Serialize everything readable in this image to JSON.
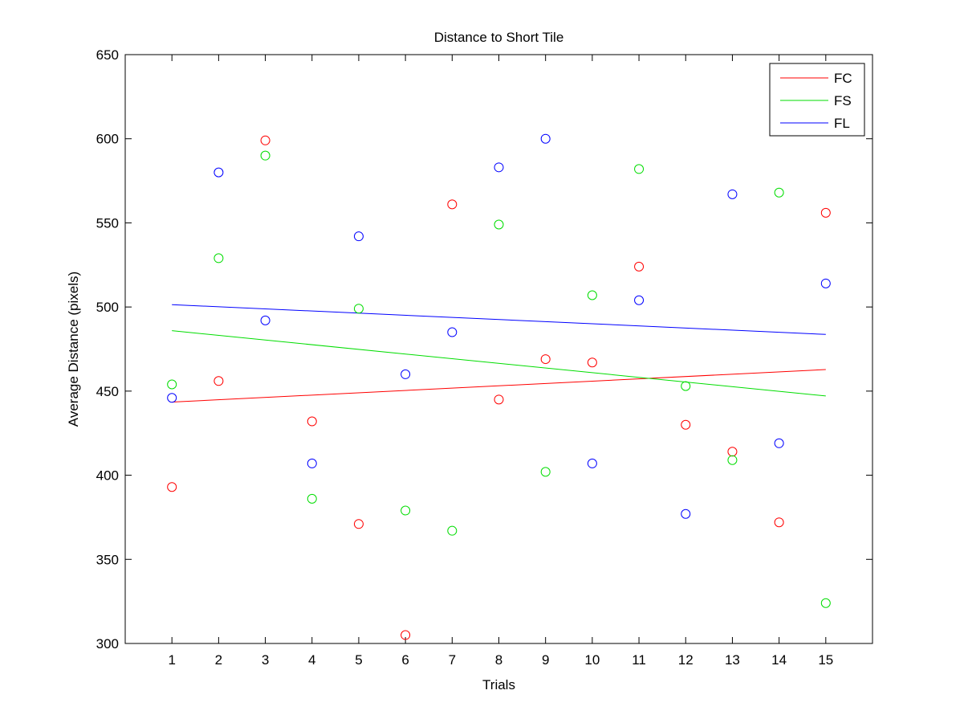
{
  "chart_data": {
    "type": "scatter",
    "title": "Distance to Short Tile",
    "xlabel": "Trials",
    "ylabel": "Average Distance (pixels)",
    "xlim": [
      0,
      16
    ],
    "ylim": [
      300,
      650
    ],
    "xticks": [
      1,
      2,
      3,
      4,
      5,
      6,
      7,
      8,
      9,
      10,
      11,
      12,
      13,
      14,
      15
    ],
    "yticks": [
      300,
      350,
      400,
      450,
      500,
      550,
      600,
      650
    ],
    "grid": false,
    "legend_position": "top-right",
    "x": [
      1,
      2,
      3,
      4,
      5,
      6,
      7,
      8,
      9,
      10,
      11,
      12,
      13,
      14,
      15
    ],
    "series": [
      {
        "name": "FC",
        "color": "#ff0000",
        "values": [
          393,
          456,
          599,
          432,
          371,
          305,
          561,
          445,
          469,
          467,
          524,
          430,
          414,
          372,
          556
        ],
        "trend": [
          443.5,
          462.8
        ]
      },
      {
        "name": "FS",
        "color": "#00dd00",
        "values": [
          454,
          529,
          590,
          386,
          499,
          379,
          367,
          549,
          402,
          507,
          582,
          453,
          409,
          568,
          324
        ],
        "trend": [
          485.9,
          447.1
        ]
      },
      {
        "name": "FL",
        "color": "#0000ff",
        "values": [
          446,
          580,
          492,
          407,
          542,
          460,
          485,
          583,
          600,
          407,
          504,
          377,
          567,
          419,
          514
        ],
        "trend": [
          501.4,
          483.7
        ]
      }
    ]
  }
}
